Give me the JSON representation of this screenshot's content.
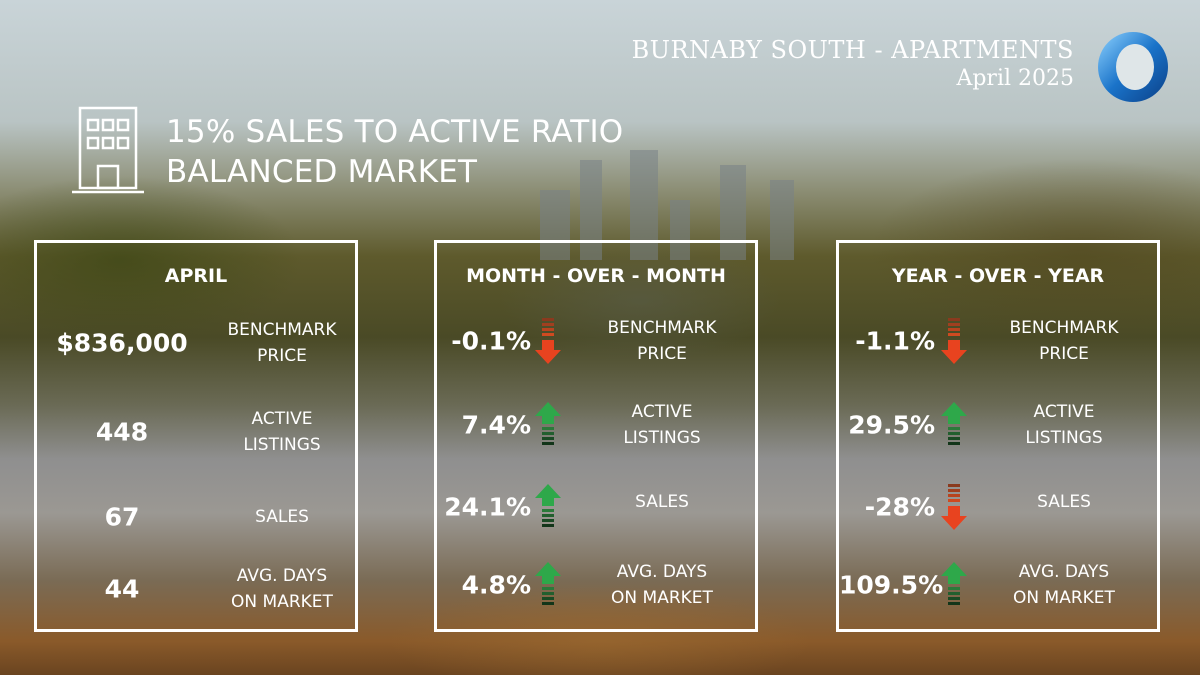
{
  "header": {
    "area": "BURNABY SOUTH - APARTMENTS",
    "date": "April 2025",
    "headline_line1": "15% SALES TO ACTIVE RATIO",
    "headline_line2": "BALANCED MARKET"
  },
  "colors": {
    "up": "#2ea84a",
    "down": "#e8431f",
    "text": "#ffffff",
    "logo": "#1a73c9"
  },
  "icons": {
    "building": "building-icon",
    "logo": "ring-logo-icon",
    "up": "up-arrow-icon",
    "down": "down-arrow-icon"
  },
  "panels": [
    {
      "title": "APRIL",
      "rows": [
        {
          "value": "$836,000",
          "label1": "BENCHMARK",
          "label2": "PRICE"
        },
        {
          "value": "448",
          "label1": "ACTIVE",
          "label2": "LISTINGS"
        },
        {
          "value": "67",
          "label1": "SALES",
          "label2": ""
        },
        {
          "value": "44",
          "label1": "AVG. DAYS",
          "label2": "ON MARKET"
        }
      ]
    },
    {
      "title": "MONTH - OVER - MONTH",
      "rows": [
        {
          "value": "-0.1%",
          "dir": "down",
          "label1": "BENCHMARK",
          "label2": "PRICE"
        },
        {
          "value": "7.4%",
          "dir": "up",
          "label1": "ACTIVE",
          "label2": "LISTINGS"
        },
        {
          "value": "24.1%",
          "dir": "up",
          "label1": "SALES",
          "label2": ""
        },
        {
          "value": "4.8%",
          "dir": "up",
          "label1": "AVG. DAYS",
          "label2": "ON MARKET"
        }
      ]
    },
    {
      "title": "YEAR - OVER - YEAR",
      "rows": [
        {
          "value": "-1.1%",
          "dir": "down",
          "label1": "BENCHMARK",
          "label2": "PRICE"
        },
        {
          "value": "29.5%",
          "dir": "up",
          "label1": "ACTIVE",
          "label2": "LISTINGS"
        },
        {
          "value": "-28%",
          "dir": "down",
          "label1": "SALES",
          "label2": ""
        },
        {
          "value": "109.5%",
          "dir": "up",
          "label1": "AVG. DAYS",
          "label2": "ON MARKET"
        }
      ]
    }
  ]
}
